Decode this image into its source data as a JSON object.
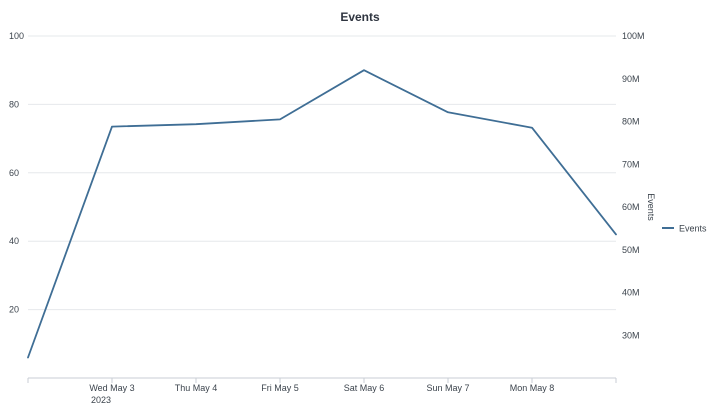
{
  "chart_data": {
    "type": "line",
    "title": "Events",
    "x": [
      "2023-05-02",
      "2023-05-03",
      "2023-05-04",
      "2023-05-05",
      "2023-05-06",
      "2023-05-07",
      "2023-05-08",
      "2023-05-09"
    ],
    "x_tick_labels": [
      {
        "label": "Wed May 3",
        "sublabel": "2023"
      },
      {
        "label": "Thu May 4",
        "sublabel": ""
      },
      {
        "label": "Fri May 5",
        "sublabel": ""
      },
      {
        "label": "Sat May 6",
        "sublabel": ""
      },
      {
        "label": "Sun May 7",
        "sublabel": ""
      },
      {
        "label": "Mon May 8",
        "sublabel": ""
      }
    ],
    "series": [
      {
        "name": "Events",
        "color": "#3f6e95",
        "values": [
          6,
          73.5,
          74.2,
          75.6,
          90,
          77.7,
          73.2,
          42
        ]
      }
    ],
    "y_left": {
      "ylim": [
        0,
        100
      ],
      "ticks": [
        "100",
        "80",
        "60",
        "40",
        "20"
      ]
    },
    "y_right": {
      "label": "Events",
      "ylim": [
        20000000,
        100000000
      ],
      "ticks": [
        "100M",
        "90M",
        "80M",
        "70M",
        "60M",
        "50M",
        "40M",
        "30M"
      ]
    },
    "grid": true,
    "legend": "right"
  }
}
